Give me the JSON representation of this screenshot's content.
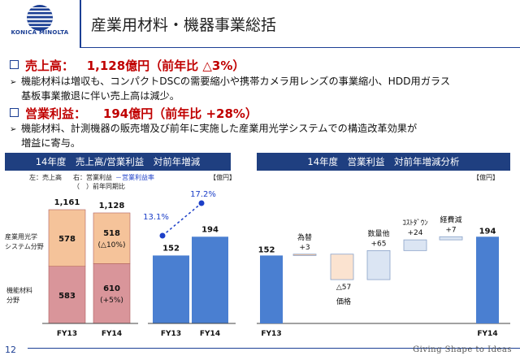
{
  "logo": {
    "text": "KONICA MINOLTA"
  },
  "title": "産業用材料・機器事業総括",
  "headline1": {
    "label": "売上高：",
    "value": "1,128億円（前年比 △3%）"
  },
  "bullet1": {
    "line1": "機能材料は増収も、コンパクトDSCの需要縮小や携帯カメラ用レンズの事業縮小、HDD用ガラス",
    "line2": "基板事業撤退に伴い売上高は減少。"
  },
  "headline2": {
    "label": "営業利益：",
    "value": "194億円（前年比 +28%）"
  },
  "bullet2": {
    "line1": "機能材料、計測機器の販売増及び前年に実施した産業用光学システムでの構造改革効果が",
    "line2": "増益に寄与。"
  },
  "left_panel": {
    "header": "14年度　売上高/営業利益　対前年増減",
    "legend_left": "左：売上高",
    "legend_right": "右：営業利益",
    "legend_rate": "－営業利益率",
    "legend_note": "（　）前年同期比",
    "unit": "【億円】",
    "label_optical": "産業用光学\nシステム分野",
    "label_functional": "機能材料\n分野"
  },
  "right_panel": {
    "header": "14年度　営業利益　対前年増減分析",
    "unit": "【億円】"
  },
  "chart_data": [
    {
      "type": "bar",
      "stacked": true,
      "categories": [
        "FY13",
        "FY14"
      ],
      "series": [
        {
          "values": [
            583,
            610
          ],
          "labels": [
            "583",
            "610"
          ],
          "notes": [
            "",
            "(+5%)"
          ]
        },
        {
          "values": [
            578,
            518
          ],
          "labels": [
            "578",
            "518"
          ],
          "notes": [
            "",
            "(△10%)"
          ]
        }
      ],
      "totals": [
        "1,161",
        "1,128"
      ],
      "colors": {
        "functional": "#d9959a",
        "optical": "#f5c39a"
      }
    },
    {
      "type": "bar",
      "categories": [
        "FY13",
        "FY14"
      ],
      "values": [
        152,
        194
      ],
      "value_labels": [
        "152",
        "194"
      ],
      "margin_rate": [
        13.1,
        17.2
      ],
      "margin_labels": [
        "13.1%",
        "17.2%"
      ],
      "colors": {
        "bar": "#4a7fd1",
        "rate": "#1c3fc8"
      }
    },
    {
      "type": "bar",
      "subtype": "waterfall",
      "start": {
        "label": "FY13",
        "value": 152,
        "value_label": "152"
      },
      "steps": [
        {
          "label": "為替",
          "delta": 3,
          "delta_label": "+3",
          "color": "#f5c39a"
        },
        {
          "label": "価格",
          "delta": -57,
          "delta_label": "△57",
          "color": "#fbe3d0"
        },
        {
          "label": "数量他",
          "delta": 65,
          "delta_label": "+65",
          "color": "#dbe5f3"
        },
        {
          "label": "ｺｽﾄﾀﾞｳﾝ",
          "delta": 24,
          "delta_label": "+24",
          "color": "#dbe5f3"
        },
        {
          "label": "経費減",
          "delta": 7,
          "delta_label": "+7",
          "color": "#dbe5f3"
        }
      ],
      "end": {
        "label": "FY14",
        "value": 194,
        "value_label": "194"
      },
      "colors": {
        "total": "#4a7fd1"
      }
    }
  ],
  "footer": {
    "page": "12",
    "tagline": "Giving Shape to Ideas"
  }
}
